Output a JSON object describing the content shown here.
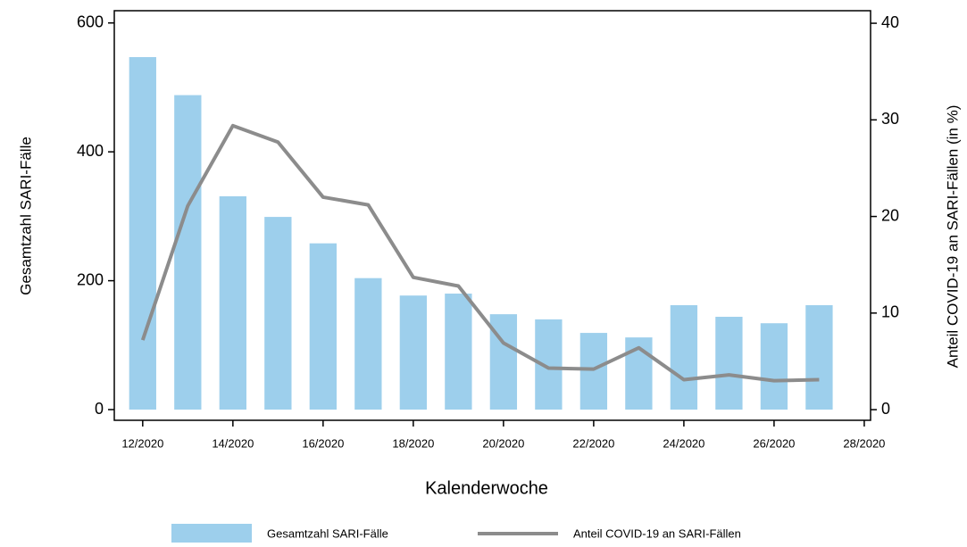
{
  "chart_data": {
    "type": "bar_line",
    "x_label": "Kalenderwoche",
    "y_label": "Gesamtzahl SARI-Fälle",
    "y2_label": "Anteil COVID-19 an SARI-Fällen (in %)",
    "x": [
      12,
      13,
      14,
      15,
      16,
      17,
      18,
      19,
      20,
      21,
      22,
      23,
      24,
      25,
      26,
      27
    ],
    "xlim": [
      11.37,
      28.14
    ],
    "xticks": [
      {
        "value": 12,
        "label": "12/2020"
      },
      {
        "value": 14,
        "label": "14/2020"
      },
      {
        "value": 16,
        "label": "16/2020"
      },
      {
        "value": 18,
        "label": "18/2020"
      },
      {
        "value": 20,
        "label": "20/2020"
      },
      {
        "value": 22,
        "label": "22/2020"
      },
      {
        "value": 24,
        "label": "24/2020"
      },
      {
        "value": 26,
        "label": "26/2020"
      },
      {
        "value": 28,
        "label": "28/2020"
      }
    ],
    "ylim": [
      -16.6,
      619
    ],
    "yticks": [
      0,
      200,
      400,
      600
    ],
    "y2lim": [
      -1.1,
      41.3
    ],
    "y2ticks": [
      0,
      10,
      20,
      30,
      40
    ],
    "series": [
      {
        "name": "Gesamtzahl SARI-Fälle",
        "type": "bar",
        "color": "#9dcfec",
        "values": [
          547,
          488,
          331,
          299,
          258,
          204,
          177,
          180,
          148,
          140,
          119,
          112,
          162,
          144,
          134,
          162
        ]
      },
      {
        "name": "Anteil COVID-19 an SARI-Fällen",
        "type": "line",
        "axis": "y2",
        "color": "#8c8c8c",
        "values": [
          7.2,
          21.1,
          29.4,
          27.7,
          22.0,
          21.2,
          13.7,
          12.8,
          6.9,
          4.3,
          4.2,
          6.4,
          3.1,
          3.6,
          3.0,
          3.1
        ]
      }
    ]
  }
}
